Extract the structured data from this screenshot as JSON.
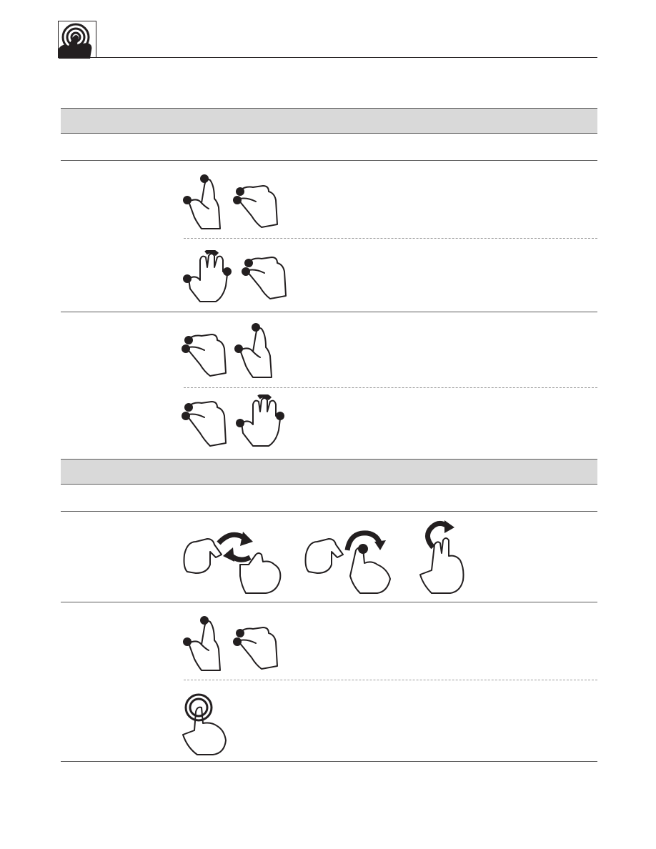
{
  "header": {
    "logo_icon": "touch-gesture-logo-icon"
  },
  "sections": [
    {
      "title": "",
      "columns": [
        "",
        "",
        ""
      ],
      "rows": [
        {
          "label": "",
          "variants": [
            {
              "gestures": [
                "pinch-close-thumb-index-icon",
                "pinch-open-thumb-index-icon"
              ],
              "description": ""
            },
            {
              "gestures": [
                "pinch-close-three-finger-icon",
                "pinch-open-thumb-index-icon"
              ],
              "description": ""
            }
          ]
        },
        {
          "label": "",
          "variants": [
            {
              "gestures": [
                "pinch-open-thumb-index-icon",
                "pinch-close-thumb-index-icon"
              ],
              "description": ""
            },
            {
              "gestures": [
                "pinch-open-thumb-index-icon",
                "pinch-close-three-finger-icon"
              ],
              "description": ""
            }
          ]
        }
      ]
    },
    {
      "title": "",
      "columns": [
        "",
        "",
        ""
      ],
      "rows": [
        {
          "label": "",
          "variants": [
            {
              "gestures": [
                "rotate-two-hands-icon",
                "rotate-hand-and-finger-icon",
                "rotate-two-finger-icon"
              ],
              "description": ""
            }
          ]
        },
        {
          "label": "",
          "variants": [
            {
              "gestures": [
                "pinch-close-thumb-index-icon",
                "pinch-open-thumb-index-icon"
              ],
              "description": ""
            },
            {
              "gestures": [
                "tap-and-hold-icon"
              ],
              "description": ""
            }
          ]
        }
      ]
    }
  ],
  "colors": {
    "band": "#d9d9d9",
    "rule": "#595959",
    "ink": "#231f20"
  }
}
